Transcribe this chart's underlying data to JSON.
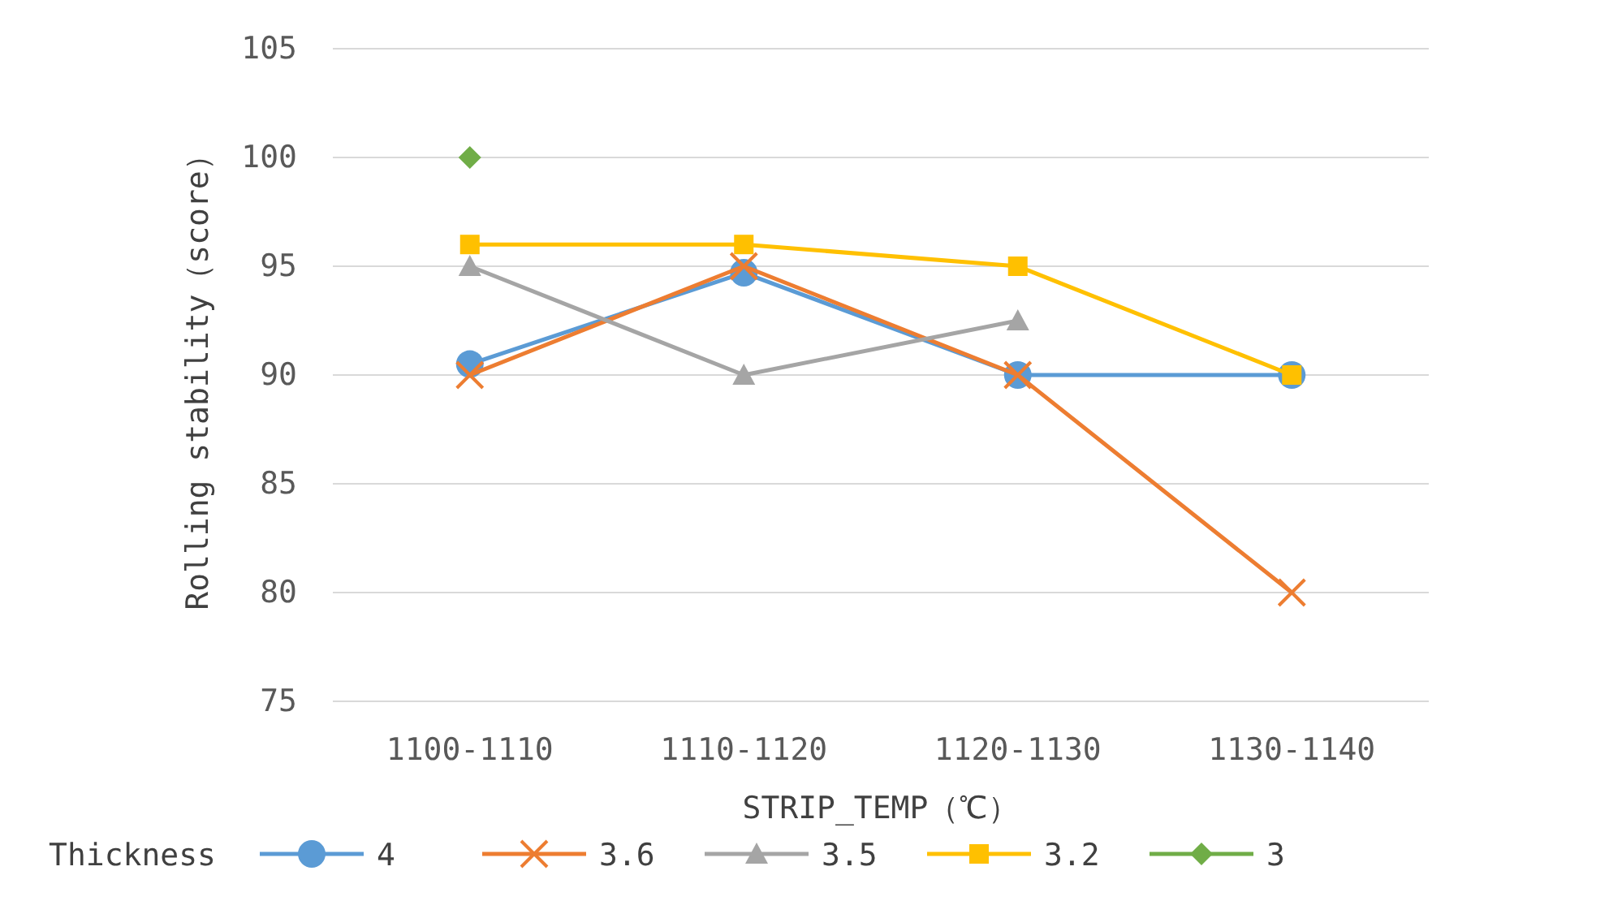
{
  "chart_data": {
    "type": "line",
    "xlabel": "STRIP_TEMP（℃）",
    "ylabel": "Rolling stability（score）",
    "legend_title": "Thickness",
    "categories": [
      "1100-1110",
      "1110-1120",
      "1120-1130",
      "1130-1140"
    ],
    "series": [
      {
        "name": "4",
        "color": "#5b9bd5",
        "marker": "circle",
        "values": [
          90.5,
          94.7,
          90,
          90
        ]
      },
      {
        "name": "3.6",
        "color": "#ed7d31",
        "marker": "cross",
        "values": [
          90,
          95,
          90,
          80
        ]
      },
      {
        "name": "3.5",
        "color": "#a5a5a5",
        "marker": "triangle",
        "values": [
          95,
          90,
          92.5,
          null
        ]
      },
      {
        "name": "3.2",
        "color": "#ffc000",
        "marker": "square",
        "values": [
          96,
          96,
          95,
          90
        ]
      },
      {
        "name": "3",
        "color": "#70ad47",
        "marker": "diamond",
        "values": [
          100,
          null,
          null,
          null
        ]
      }
    ],
    "ylim": [
      75,
      105
    ],
    "yticks": [
      75,
      80,
      85,
      90,
      95,
      100,
      105
    ],
    "grid": "y",
    "legend": "bottom"
  }
}
